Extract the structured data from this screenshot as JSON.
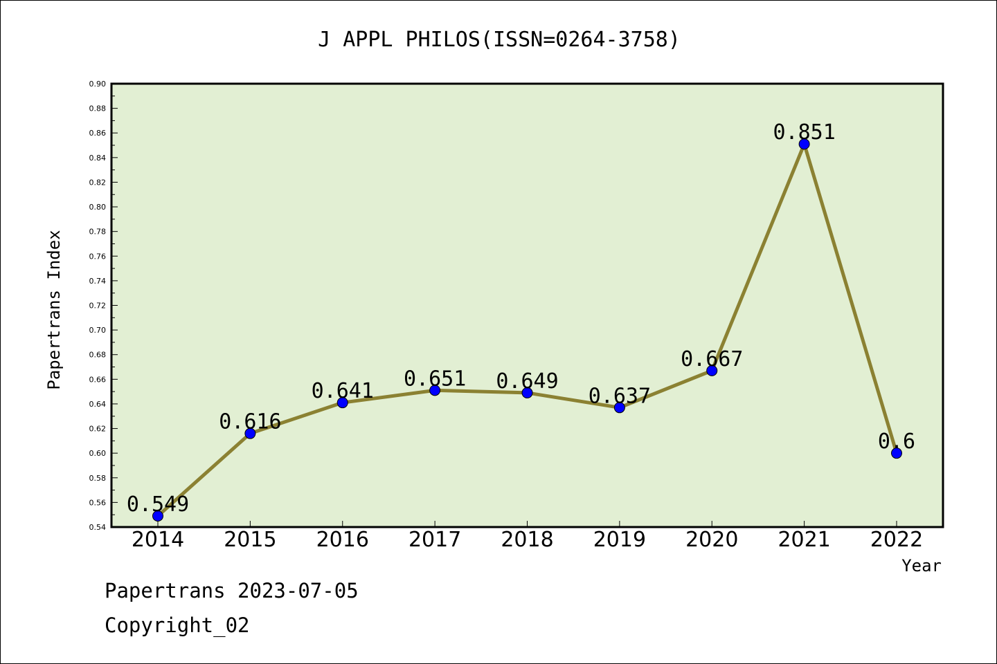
{
  "chart_data": {
    "type": "line",
    "title": "J APPL PHILOS(ISSN=0264-3758)",
    "xlabel": "Year",
    "ylabel": "Papertrans Index",
    "categories": [
      "2014",
      "2015",
      "2016",
      "2017",
      "2018",
      "2019",
      "2020",
      "2021",
      "2022"
    ],
    "series": [
      {
        "values": [
          0.549,
          0.616,
          0.641,
          0.651,
          0.649,
          0.637,
          0.667,
          0.851,
          0.6
        ]
      }
    ],
    "data_labels": [
      "0.549",
      "0.616",
      "0.641",
      "0.651",
      "0.649",
      "0.637",
      "0.667",
      "0.851",
      "0.6"
    ],
    "ylim": [
      0.54,
      0.9
    ],
    "yticks": [
      "0.54",
      "0.56",
      "0.58",
      "0.60",
      "0.62",
      "0.64",
      "0.66",
      "0.68",
      "0.70",
      "0.72",
      "0.74",
      "0.76",
      "0.78",
      "0.80",
      "0.82",
      "0.84",
      "0.86",
      "0.88",
      "0.90"
    ],
    "grid": false,
    "colors": {
      "plot_background": "#e2efd3",
      "line": "#8b8132",
      "marker": "#0000ff"
    }
  },
  "footer": {
    "date_line": "Papertrans 2023-07-05",
    "copyright_line": "Copyright_02"
  }
}
